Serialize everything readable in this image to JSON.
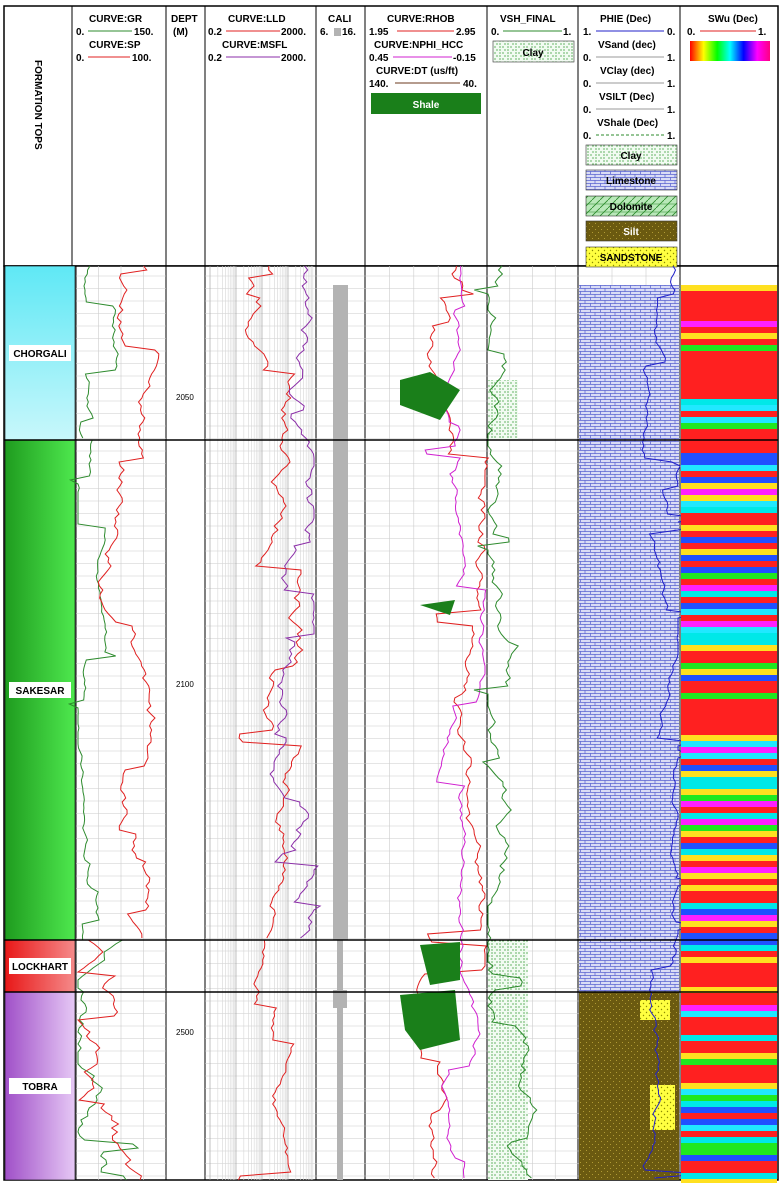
{
  "chart_data": {
    "type": "line",
    "title": "",
    "header": {
      "formation_tops_label": "FORMATION TOPS",
      "track1": {
        "gr": {
          "label": "CURVE:GR",
          "min": "0.",
          "max": "150.",
          "color": "#2e8b2e"
        },
        "sp": {
          "label": "CURVE:SP",
          "min": "0.",
          "max": "100.",
          "color": "#e02020"
        }
      },
      "depth": {
        "label": "DEPT",
        "unit": "(M)"
      },
      "track3": {
        "lld": {
          "label": "CURVE:LLD",
          "min": "0.2",
          "max": "2000.",
          "color": "#e02020"
        },
        "msfl": {
          "label": "CURVE:MSFL",
          "min": "0.2",
          "max": "2000.",
          "color": "#8b2ea8"
        }
      },
      "cali": {
        "label": "CALI",
        "min": "6.",
        "max": "16.",
        "color": "#b3b3b3"
      },
      "track5": {
        "rhob": {
          "label": "CURVE:RHOB",
          "min": "1.95",
          "max": "2.95",
          "color": "#e02020"
        },
        "nphi": {
          "label": "CURVE:NPHI_HCC",
          "min": "0.45",
          "max": "-0.15",
          "color": "#d020d0"
        },
        "dt": {
          "label": "CURVE:DT (us/ft)",
          "min": "140.",
          "max": "40.",
          "color": "#6b3a1e"
        },
        "shale_label": "Shale"
      },
      "track6": {
        "label": "VSH_FINAL",
        "min": "0.",
        "max": "1.",
        "clay_label": "Clay"
      },
      "track7": {
        "phie": {
          "label": "PHIE (Dec)",
          "min": "1.",
          "max": "0."
        },
        "vsand": {
          "label": "VSand (dec)",
          "min": "0.",
          "max": "1."
        },
        "vclay": {
          "label": "VClay (dec)",
          "min": "0.",
          "max": "1."
        },
        "vsilt": {
          "label": "VSILT (Dec)",
          "min": "0.",
          "max": "1."
        },
        "vshale": {
          "label": "VShale (Dec)",
          "min": "0.",
          "max": "1."
        },
        "lithologies": [
          "Clay",
          "Limestone",
          "Dolomite",
          "Silt",
          "SANDSTONE"
        ]
      },
      "track8": {
        "label": "SWu (Dec)",
        "min": "0.",
        "max": "1."
      }
    },
    "depth_ticks": [
      {
        "label": "2050",
        "value": 2050
      },
      {
        "label": "2100",
        "value": 2100
      },
      {
        "label": "2500",
        "value": 2500
      }
    ],
    "formations": [
      {
        "name": "CHORGALI",
        "color_top": "#5fe8f5",
        "color_bottom": "#c8f7fb"
      },
      {
        "name": "SAKESAR",
        "color_top": "#1f9c1f",
        "color_bottom": "#4ee84e"
      },
      {
        "name": "LOCKHART",
        "color_top": "#e81818",
        "color_bottom": "#f58a8a"
      },
      {
        "name": "TOBRA",
        "color_top": "#a050c8",
        "color_bottom": "#e6c8f5"
      }
    ]
  }
}
